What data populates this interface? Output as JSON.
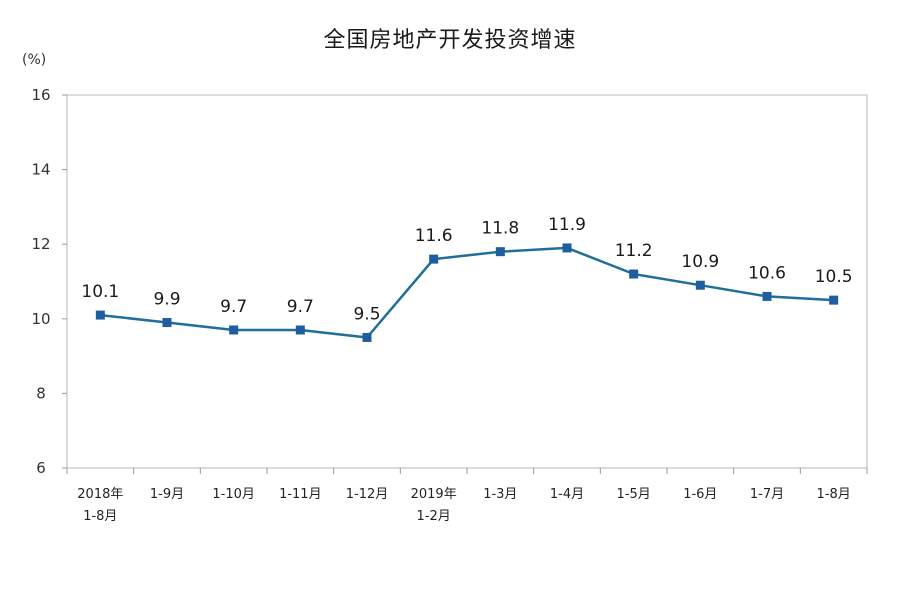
{
  "chart_data": {
    "type": "line",
    "title": "全国房地产开发投资增速",
    "ylabel": "(%)",
    "ylim": [
      6,
      16
    ],
    "yticks": [
      6,
      8,
      10,
      12,
      14,
      16
    ],
    "grid": false,
    "legend": "none",
    "categories": [
      [
        "2018年",
        "1-8月"
      ],
      [
        "1-9月"
      ],
      [
        "1-10月"
      ],
      [
        "1-11月"
      ],
      [
        "1-12月"
      ],
      [
        "2019年",
        "1-2月"
      ],
      [
        "1-3月"
      ],
      [
        "1-4月"
      ],
      [
        "1-5月"
      ],
      [
        "1-6月"
      ],
      [
        "1-7月"
      ],
      [
        "1-8月"
      ]
    ],
    "values": [
      10.1,
      9.9,
      9.7,
      9.7,
      9.5,
      11.6,
      11.8,
      11.9,
      11.2,
      10.9,
      10.6,
      10.5
    ],
    "data_labels": [
      "10.1",
      "9.9",
      "9.7",
      "9.7",
      "9.5",
      "11.6",
      "11.8",
      "11.9",
      "11.2",
      "10.9",
      "10.6",
      "10.5"
    ],
    "line_color": "#1f6f9a",
    "marker_color": "#1f5e9e"
  }
}
